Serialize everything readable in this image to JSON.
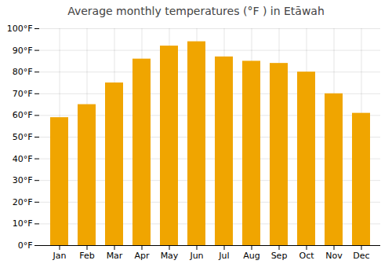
{
  "chart_data": {
    "type": "bar",
    "title": "Average monthly temperatures (°F ) in Etāwah",
    "categories": [
      "Jan",
      "Feb",
      "Mar",
      "Apr",
      "May",
      "Jun",
      "Jul",
      "Aug",
      "Sep",
      "Oct",
      "Nov",
      "Dec"
    ],
    "values": [
      59,
      65,
      75,
      86,
      92,
      94,
      87,
      85,
      84,
      80,
      70,
      61
    ],
    "color": "#F0A500",
    "ylim": [
      0,
      100
    ],
    "yticks": [
      {
        "value": 0,
        "label": "0°F"
      },
      {
        "value": 10,
        "label": "10°F"
      },
      {
        "value": 20,
        "label": "20°F"
      },
      {
        "value": 30,
        "label": "30°F"
      },
      {
        "value": 40,
        "label": "40°F"
      },
      {
        "value": 50,
        "label": "50°F"
      },
      {
        "value": 60,
        "label": "60°F"
      },
      {
        "value": 70,
        "label": "70°F"
      },
      {
        "value": 80,
        "label": "80°F"
      },
      {
        "value": 90,
        "label": "90°F"
      },
      {
        "value": 100,
        "label": "100°F"
      }
    ],
    "grid": true
  }
}
